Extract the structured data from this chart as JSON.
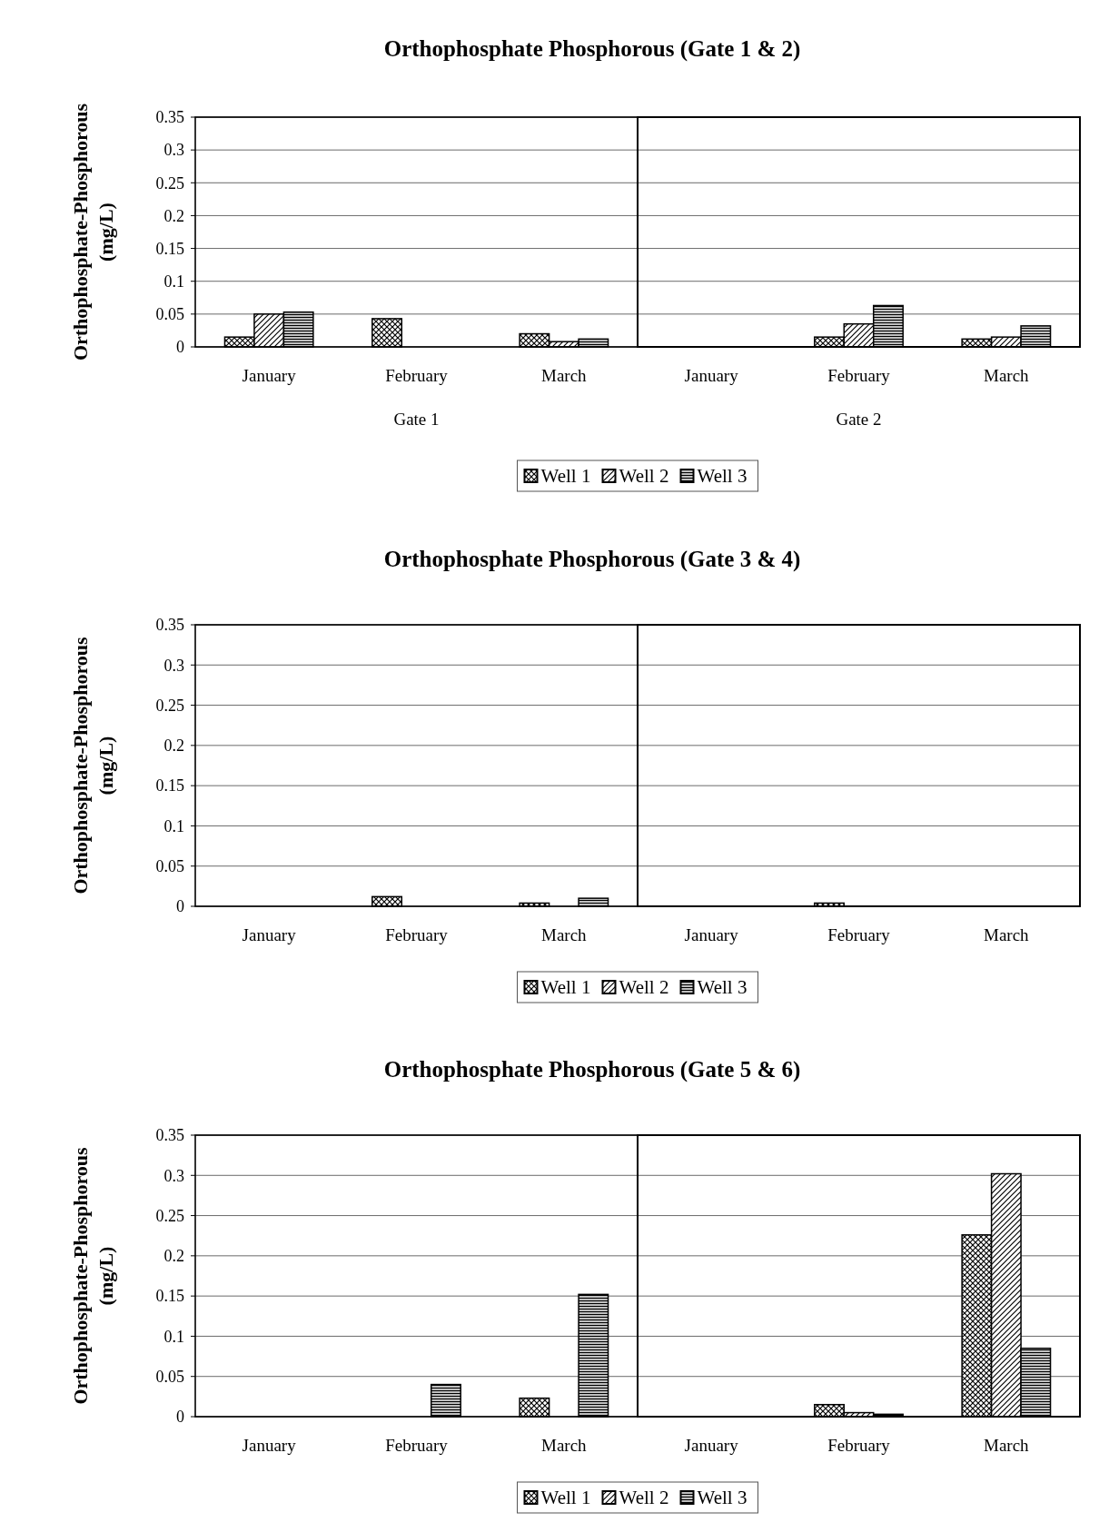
{
  "chart_data": [
    {
      "type": "bar",
      "title": "Orthophosphate Phosphorous (Gate 1 & 2)",
      "ylabel": "Orthophosphate-Phosphorous (mg/L)",
      "xlabel": "Gate 1",
      "categories": [
        "January",
        "February",
        "March"
      ],
      "ylim": [
        0,
        0.35
      ],
      "yticks": [
        0,
        0.05,
        0.1,
        0.15,
        0.2,
        0.25,
        0.3,
        0.35
      ],
      "grid": "y",
      "legend": "bottom",
      "series": [
        {
          "name": "Well 1",
          "color": "#000000",
          "values": [
            0.015,
            0.043,
            0.02
          ]
        },
        {
          "name": "Well 2",
          "color": "#000000",
          "values": [
            0.05,
            0,
            0.008
          ]
        },
        {
          "name": "Well 3",
          "color": "#000000",
          "values": [
            0.053,
            0,
            0.012
          ]
        }
      ]
    },
    {
      "type": "bar",
      "xlabel": "Gate 2",
      "categories": [
        "January",
        "February",
        "March"
      ],
      "ylim": [
        0,
        0.35
      ],
      "yticks": [
        0,
        0.05,
        0.1,
        0.15,
        0.2,
        0.25,
        0.3,
        0.35
      ],
      "grid": "y",
      "tick_labels": "x",
      "series": [
        {
          "color": "#000000",
          "values": [
            0,
            0.015,
            0.012
          ]
        },
        {
          "color": "#000000",
          "values": [
            0,
            0.035,
            0.015
          ]
        },
        {
          "color": "#000000",
          "values": [
            0,
            0.063,
            0.032
          ]
        }
      ]
    },
    {
      "type": "bar",
      "title": "Orthophosphate Phosphorous (Gate 3 & 4)",
      "ylabel": "Orthophosphate-Phosphorous (mg/L)",
      "categories": [
        "January",
        "February",
        "March"
      ],
      "ylim": [
        0,
        0.35
      ],
      "yticks": [
        0,
        0.05,
        0.1,
        0.15,
        0.2,
        0.25,
        0.3,
        0.35
      ],
      "grid": "y",
      "legend": "bottom",
      "series": [
        {
          "name": "Well 1",
          "color": "#000000",
          "values": [
            0,
            0.012,
            0.004
          ]
        },
        {
          "name": "Well 2",
          "color": "#000000",
          "values": [
            0,
            0,
            0
          ]
        },
        {
          "name": "Well 3",
          "color": "#000000",
          "values": [
            0,
            0,
            0.01
          ]
        }
      ]
    },
    {
      "type": "bar",
      "categories": [
        "January",
        "February",
        "March"
      ],
      "ylim": [
        0,
        0.35
      ],
      "yticks": [
        0,
        0.05,
        0.1,
        0.15,
        0.2,
        0.25,
        0.3,
        0.35
      ],
      "grid": "y",
      "tick_labels": "x",
      "series": [
        {
          "color": "#000000",
          "values": [
            0,
            0.004,
            0
          ]
        },
        {
          "color": "#000000",
          "values": [
            0,
            0,
            0
          ]
        },
        {
          "color": "#000000",
          "values": [
            0,
            0,
            0
          ]
        }
      ]
    },
    {
      "type": "bar",
      "title": "Orthophosphate Phosphorous (Gate 5 & 6)",
      "ylabel": "Orthophosphate-Phosphorous (mg/L)",
      "categories": [
        "January",
        "February",
        "March"
      ],
      "ylim": [
        0,
        0.35
      ],
      "yticks": [
        0,
        0.05,
        0.1,
        0.15,
        0.2,
        0.25,
        0.3,
        0.35
      ],
      "grid": "y",
      "legend": "bottom",
      "series": [
        {
          "name": "Well 1",
          "color": "#000000",
          "values": [
            0,
            0,
            0.023
          ]
        },
        {
          "name": "Well 2",
          "color": "#000000",
          "values": [
            0,
            0,
            0
          ]
        },
        {
          "name": "Well 3",
          "color": "#000000",
          "values": [
            0,
            0.04,
            0.152
          ]
        }
      ]
    },
    {
      "type": "bar",
      "categories": [
        "January",
        "February",
        "March"
      ],
      "ylim": [
        0,
        0.35
      ],
      "yticks": [
        0,
        0.05,
        0.1,
        0.15,
        0.2,
        0.25,
        0.3,
        0.35
      ],
      "grid": "y",
      "tick_labels": "x",
      "series": [
        {
          "color": "#000000",
          "values": [
            0,
            0.015,
            0.226
          ]
        },
        {
          "color": "#000000",
          "values": [
            0,
            0.005,
            0.302
          ]
        },
        {
          "color": "#000000",
          "values": [
            0,
            0.003,
            0.085
          ]
        }
      ]
    }
  ]
}
